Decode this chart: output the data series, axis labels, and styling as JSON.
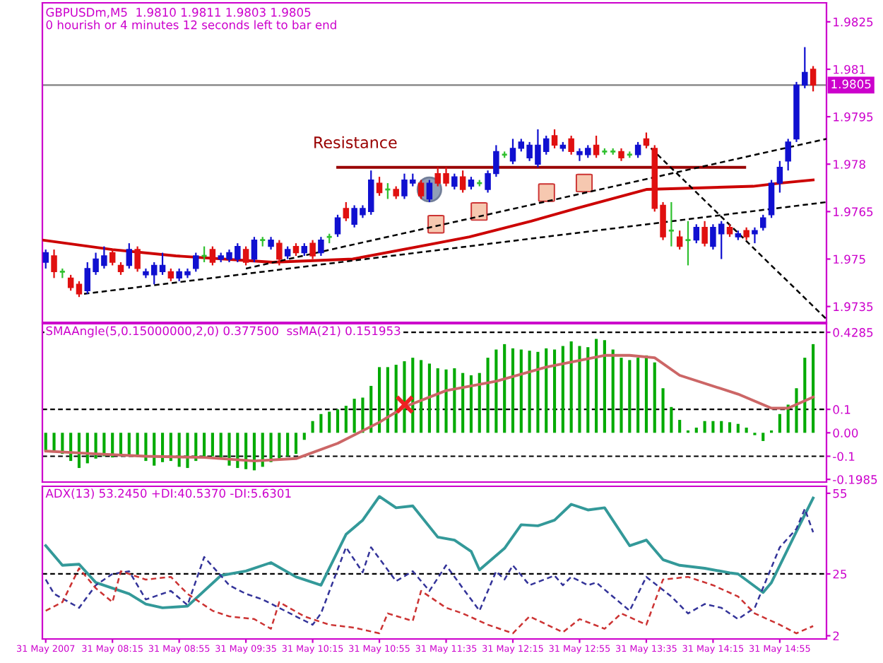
{
  "chart_data": [
    {
      "type": "candlestick",
      "title": "GBPUSDm,M5  1.9810 1.9811 1.9803 1.9805",
      "subtitle": "0 hourish or 4 minutes 12 seconds left to bar end",
      "tick_labels": "y",
      "x": [
        "2007-05-31T07:35",
        "2007-05-31T07:40",
        "2007-05-31T07:45",
        "2007-05-31T07:50",
        "2007-05-31T07:55",
        "2007-05-31T08:00",
        "2007-05-31T08:05",
        "2007-05-31T08:10",
        "2007-05-31T08:15",
        "2007-05-31T08:20",
        "2007-05-31T08:25",
        "2007-05-31T08:30",
        "2007-05-31T08:35",
        "2007-05-31T08:40",
        "2007-05-31T08:45",
        "2007-05-31T08:50",
        "2007-05-31T08:55",
        "2007-05-31T09:00",
        "2007-05-31T09:05",
        "2007-05-31T09:10",
        "2007-05-31T09:15",
        "2007-05-31T09:20",
        "2007-05-31T09:25",
        "2007-05-31T09:30",
        "2007-05-31T09:35",
        "2007-05-31T09:40",
        "2007-05-31T09:45",
        "2007-05-31T09:50",
        "2007-05-31T09:55",
        "2007-05-31T10:00",
        "2007-05-31T10:05",
        "2007-05-31T10:10",
        "2007-05-31T10:15",
        "2007-05-31T10:20",
        "2007-05-31T10:25",
        "2007-05-31T10:30",
        "2007-05-31T10:35",
        "2007-05-31T10:40",
        "2007-05-31T10:45",
        "2007-05-31T10:50",
        "2007-05-31T10:55",
        "2007-05-31T11:00",
        "2007-05-31T11:05",
        "2007-05-31T11:10",
        "2007-05-31T11:15",
        "2007-05-31T11:20",
        "2007-05-31T11:25",
        "2007-05-31T11:30",
        "2007-05-31T11:35",
        "2007-05-31T11:40",
        "2007-05-31T11:45",
        "2007-05-31T11:50",
        "2007-05-31T11:55",
        "2007-05-31T12:00",
        "2007-05-31T12:05",
        "2007-05-31T12:10",
        "2007-05-31T12:15",
        "2007-05-31T12:20",
        "2007-05-31T12:25",
        "2007-05-31T12:30",
        "2007-05-31T12:35",
        "2007-05-31T12:40",
        "2007-05-31T12:45",
        "2007-05-31T12:50",
        "2007-05-31T12:55",
        "2007-05-31T13:00",
        "2007-05-31T13:05",
        "2007-05-31T13:10",
        "2007-05-31T13:15",
        "2007-05-31T13:20",
        "2007-05-31T13:25",
        "2007-05-31T13:30",
        "2007-05-31T13:35",
        "2007-05-31T13:40",
        "2007-05-31T13:45",
        "2007-05-31T13:50",
        "2007-05-31T13:55",
        "2007-05-31T14:00",
        "2007-05-31T14:05",
        "2007-05-31T14:10",
        "2007-05-31T14:15",
        "2007-05-31T14:20",
        "2007-05-31T14:25",
        "2007-05-31T14:30",
        "2007-05-31T14:35",
        "2007-05-31T14:40",
        "2007-05-31T14:45",
        "2007-05-31T14:50",
        "2007-05-31T14:55",
        "2007-05-31T15:00",
        "2007-05-31T15:05",
        "2007-05-31T15:10",
        "2007-05-31T15:15"
      ],
      "ohlc": [
        [
          1.9749,
          1.9753,
          1.9747,
          1.9752
        ],
        [
          1.9751,
          1.9753,
          1.9744,
          1.9746
        ],
        [
          1.9746,
          1.9747,
          1.9744,
          1.9746
        ],
        [
          1.9744,
          1.9745,
          1.974,
          1.9741
        ],
        [
          1.9742,
          1.9743,
          1.9738,
          1.9739
        ],
        [
          1.974,
          1.9749,
          1.9739,
          1.9747
        ],
        [
          1.9746,
          1.9752,
          1.9745,
          1.975
        ],
        [
          1.9748,
          1.9754,
          1.9747,
          1.9751
        ],
        [
          1.9752,
          1.9753,
          1.9748,
          1.9749
        ],
        [
          1.9748,
          1.9749,
          1.9745,
          1.9746
        ],
        [
          1.9748,
          1.9755,
          1.9747,
          1.9753
        ],
        [
          1.9753,
          1.9754,
          1.9746,
          1.9747
        ],
        [
          1.9745,
          1.9747,
          1.9744,
          1.9746
        ],
        [
          1.9745,
          1.9749,
          1.9742,
          1.9748
        ],
        [
          1.9746,
          1.9752,
          1.9745,
          1.9748
        ],
        [
          1.9746,
          1.9747,
          1.9743,
          1.9744
        ],
        [
          1.9744,
          1.9747,
          1.9743,
          1.9746
        ],
        [
          1.9745,
          1.9747,
          1.9744,
          1.9746
        ],
        [
          1.9747,
          1.9752,
          1.9746,
          1.9751
        ],
        [
          1.9751,
          1.9754,
          1.9749,
          1.9751
        ],
        [
          1.9753,
          1.9754,
          1.9748,
          1.9749
        ],
        [
          1.975,
          1.9752,
          1.9749,
          1.9751
        ],
        [
          1.975,
          1.9753,
          1.9749,
          1.9752
        ],
        [
          1.975,
          1.9755,
          1.9749,
          1.9754
        ],
        [
          1.9753,
          1.9754,
          1.9748,
          1.9749
        ],
        [
          1.975,
          1.9757,
          1.9749,
          1.9756
        ],
        [
          1.9756,
          1.9757,
          1.9754,
          1.9756
        ],
        [
          1.9754,
          1.9757,
          1.9753,
          1.9756
        ],
        [
          1.9755,
          1.9756,
          1.9748,
          1.975
        ],
        [
          1.9751,
          1.9754,
          1.975,
          1.9753
        ],
        [
          1.9754,
          1.9755,
          1.9751,
          1.9752
        ],
        [
          1.9752,
          1.9755,
          1.9751,
          1.9754
        ],
        [
          1.9755,
          1.9756,
          1.975,
          1.9751
        ],
        [
          1.9752,
          1.9757,
          1.9751,
          1.9756
        ],
        [
          1.9757,
          1.9758,
          1.9755,
          1.9757
        ],
        [
          1.9758,
          1.9764,
          1.9757,
          1.9763
        ],
        [
          1.9766,
          1.9768,
          1.9762,
          1.9763
        ],
        [
          1.9761,
          1.9767,
          1.976,
          1.9766
        ],
        [
          1.9764,
          1.9767,
          1.9763,
          1.9766
        ],
        [
          1.9765,
          1.9778,
          1.9764,
          1.9775
        ],
        [
          1.9774,
          1.9776,
          1.977,
          1.9771
        ],
        [
          1.9772,
          1.9774,
          1.9769,
          1.9772
        ],
        [
          1.9772,
          1.9773,
          1.9769,
          1.977
        ],
        [
          1.977,
          1.9777,
          1.9769,
          1.9775
        ],
        [
          1.9774,
          1.9777,
          1.9773,
          1.9775
        ],
        [
          1.9774,
          1.9775,
          1.9769,
          1.977
        ],
        [
          1.9769,
          1.9775,
          1.9768,
          1.9774
        ],
        [
          1.9777,
          1.9779,
          1.9773,
          1.9774
        ],
        [
          1.9777,
          1.9779,
          1.9773,
          1.9774
        ],
        [
          1.9773,
          1.9777,
          1.9772,
          1.9776
        ],
        [
          1.9776,
          1.9778,
          1.9771,
          1.9772
        ],
        [
          1.9773,
          1.9776,
          1.9772,
          1.9775
        ],
        [
          1.9774,
          1.9775,
          1.9773,
          1.9774
        ],
        [
          1.9772,
          1.9778,
          1.9771,
          1.9777
        ],
        [
          1.9777,
          1.9786,
          1.9776,
          1.9784
        ],
        [
          1.9783,
          1.9784,
          1.9782,
          1.9783
        ],
        [
          1.9781,
          1.9788,
          1.978,
          1.9785
        ],
        [
          1.9785,
          1.9788,
          1.9784,
          1.9787
        ],
        [
          1.9782,
          1.9787,
          1.9781,
          1.9786
        ],
        [
          1.978,
          1.9791,
          1.9779,
          1.9786
        ],
        [
          1.9784,
          1.9789,
          1.9783,
          1.9788
        ],
        [
          1.9789,
          1.9791,
          1.9785,
          1.9786
        ],
        [
          1.9785,
          1.9787,
          1.9784,
          1.9786
        ],
        [
          1.9788,
          1.9789,
          1.9783,
          1.9784
        ],
        [
          1.9783,
          1.9785,
          1.9781,
          1.9784
        ],
        [
          1.9783,
          1.9786,
          1.9782,
          1.9785
        ],
        [
          1.9786,
          1.9789,
          1.9782,
          1.9783
        ],
        [
          1.9784,
          1.9785,
          1.9783,
          1.9784
        ],
        [
          1.9784,
          1.9785,
          1.9783,
          1.9784
        ],
        [
          1.9784,
          1.9785,
          1.9781,
          1.9782
        ],
        [
          1.9783,
          1.9784,
          1.9782,
          1.9783
        ],
        [
          1.9783,
          1.9787,
          1.9782,
          1.9786
        ],
        [
          1.9788,
          1.979,
          1.9785,
          1.9786
        ],
        [
          1.9785,
          1.9786,
          1.9765,
          1.9766
        ],
        [
          1.9767,
          1.9768,
          1.9756,
          1.9757
        ],
        [
          1.9759,
          1.9768,
          1.9754,
          1.9759
        ],
        [
          1.9757,
          1.9759,
          1.9753,
          1.9754
        ],
        [
          1.9756,
          1.9762,
          1.9748,
          1.9756
        ],
        [
          1.9756,
          1.9761,
          1.9755,
          1.976
        ],
        [
          1.976,
          1.9762,
          1.9754,
          1.9755
        ],
        [
          1.9754,
          1.9761,
          1.9753,
          1.976
        ],
        [
          1.9758,
          1.9762,
          1.975,
          1.9761
        ],
        [
          1.976,
          1.9761,
          1.9757,
          1.9758
        ],
        [
          1.9757,
          1.9759,
          1.9756,
          1.9758
        ],
        [
          1.9759,
          1.976,
          1.9756,
          1.9757
        ],
        [
          1.9758,
          1.976,
          1.9755,
          1.9759
        ],
        [
          1.976,
          1.9764,
          1.9759,
          1.9763
        ],
        [
          1.9764,
          1.9775,
          1.9763,
          1.9774
        ],
        [
          1.9774,
          1.9781,
          1.9771,
          1.9779
        ],
        [
          1.9781,
          1.9788,
          1.9778,
          1.9787
        ],
        [
          1.9788,
          1.9806,
          1.9787,
          1.9805
        ],
        [
          1.9805,
          1.9817,
          1.9804,
          1.9809
        ],
        [
          1.981,
          1.9811,
          1.9803,
          1.9805
        ]
      ],
      "colors": [
        "#1010d0",
        "#e01010",
        "#30c030",
        "#e01010",
        "#e01010",
        "#1010d0",
        "#1010d0",
        "#1010d0",
        "#e01010",
        "#e01010",
        "#1010d0",
        "#e01010",
        "#1010d0",
        "#1010d0",
        "#1010d0",
        "#e01010",
        "#1010d0",
        "#1010d0",
        "#1010d0",
        "#30c030",
        "#e01010",
        "#1010d0",
        "#1010d0",
        "#1010d0",
        "#e01010",
        "#1010d0",
        "#30c030",
        "#1010d0",
        "#e01010",
        "#1010d0",
        "#e01010",
        "#1010d0",
        "#e01010",
        "#1010d0",
        "#30c030",
        "#1010d0",
        "#e01010",
        "#1010d0",
        "#1010d0",
        "#1010d0",
        "#e01010",
        "#30c030",
        "#e01010",
        "#1010d0",
        "#1010d0",
        "#e01010",
        "#1010d0",
        "#e01010",
        "#e01010",
        "#1010d0",
        "#e01010",
        "#1010d0",
        "#30c030",
        "#1010d0",
        "#1010d0",
        "#30c030",
        "#1010d0",
        "#1010d0",
        "#1010d0",
        "#1010d0",
        "#1010d0",
        "#e01010",
        "#1010d0",
        "#e01010",
        "#1010d0",
        "#1010d0",
        "#e01010",
        "#30c030",
        "#30c030",
        "#e01010",
        "#30c030",
        "#1010d0",
        "#e01010",
        "#e01010",
        "#e01010",
        "#30c030",
        "#e01010",
        "#30c030",
        "#1010d0",
        "#e01010",
        "#1010d0",
        "#1010d0",
        "#e01010",
        "#1010d0",
        "#e01010",
        "#1010d0",
        "#1010d0",
        "#1010d0",
        "#1010d0",
        "#1010d0",
        "#1010d0",
        "#1010d0",
        "#e01010"
      ],
      "series": [
        {
          "type": "line",
          "color": "#cc0000",
          "x": [
            "2007-05-31T07:33",
            "2007-05-31T08:15",
            "2007-05-31T08:53",
            "2007-05-31T09:51",
            "2007-05-31T10:39",
            "2007-05-31T11:19",
            "2007-05-31T11:49",
            "2007-05-31T12:26",
            "2007-05-31T12:53",
            "2007-05-31T13:35",
            "2007-05-31T14:39",
            "2007-05-31T14:55",
            "2007-05-31T15:15"
          ],
          "values": [
            1.9756,
            1.9753,
            1.9751,
            1.9749,
            1.975,
            1.9754,
            1.9757,
            1.9762,
            1.9766,
            1.9772,
            1.9773,
            1.9774,
            1.9775
          ]
        },
        {
          "type": "line",
          "color": "#990000",
          "x": [
            "2007-05-31T10:30",
            "2007-05-31T14:34"
          ],
          "values": [
            1.9779,
            1.9779
          ]
        },
        {
          "type": "line",
          "color": "#000000",
          "line_style": "dashed",
          "x": [
            "2007-05-31T07:58",
            "2007-05-31T15:23"
          ],
          "values": [
            1.9739,
            1.9768
          ]
        },
        {
          "type": "line",
          "color": "#000000",
          "line_style": "dashed",
          "x": [
            "2007-05-31T09:35",
            "2007-05-31T15:23"
          ],
          "values": [
            1.9747,
            1.9788
          ]
        },
        {
          "type": "line",
          "color": "#000000",
          "line_style": "dashed",
          "x": [
            "2007-05-31T13:34",
            "2007-05-31T15:23"
          ],
          "values": [
            1.9787,
            1.9731
          ]
        }
      ],
      "annotations": [
        "Resistance"
      ],
      "ref_lines": [
        {
          "axis": "y",
          "value": 1.9805,
          "label": "1.9805",
          "color": "#808080"
        }
      ],
      "xlim": [
        "2007-05-31T07:33",
        "2007-05-31T15:23"
      ],
      "ylim": [
        1.973,
        1.9831
      ],
      "yticks": [
        1.9825,
        1.981,
        1.9795,
        1.978,
        1.9765,
        1.975,
        1.9735
      ]
    },
    {
      "type": "bar",
      "title": "SMAAngle(5,0.15000000,2,0) 0.377500  ssMA(21) 0.151953",
      "tick_labels": "y",
      "color": "#00aa00",
      "x": [
        "2007-05-31T07:35",
        "2007-05-31T07:40",
        "2007-05-31T07:45",
        "2007-05-31T07:50",
        "2007-05-31T07:55",
        "2007-05-31T08:00",
        "2007-05-31T08:05",
        "2007-05-31T08:10",
        "2007-05-31T08:15",
        "2007-05-31T08:20",
        "2007-05-31T08:25",
        "2007-05-31T08:30",
        "2007-05-31T08:35",
        "2007-05-31T08:40",
        "2007-05-31T08:45",
        "2007-05-31T08:50",
        "2007-05-31T08:55",
        "2007-05-31T09:00",
        "2007-05-31T09:05",
        "2007-05-31T09:10",
        "2007-05-31T09:15",
        "2007-05-31T09:20",
        "2007-05-31T09:25",
        "2007-05-31T09:30",
        "2007-05-31T09:35",
        "2007-05-31T09:40",
        "2007-05-31T09:45",
        "2007-05-31T09:50",
        "2007-05-31T09:55",
        "2007-05-31T10:00",
        "2007-05-31T10:05",
        "2007-05-31T10:10",
        "2007-05-31T10:15",
        "2007-05-31T10:20",
        "2007-05-31T10:25",
        "2007-05-31T10:30",
        "2007-05-31T10:35",
        "2007-05-31T10:40",
        "2007-05-31T10:45",
        "2007-05-31T10:50",
        "2007-05-31T10:55",
        "2007-05-31T11:00",
        "2007-05-31T11:05",
        "2007-05-31T11:10",
        "2007-05-31T11:15",
        "2007-05-31T11:20",
        "2007-05-31T11:25",
        "2007-05-31T11:30",
        "2007-05-31T11:35",
        "2007-05-31T11:40",
        "2007-05-31T11:45",
        "2007-05-31T11:50",
        "2007-05-31T11:55",
        "2007-05-31T12:00",
        "2007-05-31T12:05",
        "2007-05-31T12:10",
        "2007-05-31T12:15",
        "2007-05-31T12:20",
        "2007-05-31T12:25",
        "2007-05-31T12:30",
        "2007-05-31T12:35",
        "2007-05-31T12:40",
        "2007-05-31T12:45",
        "2007-05-31T12:50",
        "2007-05-31T12:55",
        "2007-05-31T13:00",
        "2007-05-31T13:05",
        "2007-05-31T13:10",
        "2007-05-31T13:15",
        "2007-05-31T13:20",
        "2007-05-31T13:25",
        "2007-05-31T13:30",
        "2007-05-31T13:35",
        "2007-05-31T13:40",
        "2007-05-31T13:45",
        "2007-05-31T13:50",
        "2007-05-31T13:55",
        "2007-05-31T14:00",
        "2007-05-31T14:05",
        "2007-05-31T14:10",
        "2007-05-31T14:15",
        "2007-05-31T14:20",
        "2007-05-31T14:25",
        "2007-05-31T14:30",
        "2007-05-31T14:35",
        "2007-05-31T14:40",
        "2007-05-31T14:45",
        "2007-05-31T14:50",
        "2007-05-31T14:55",
        "2007-05-31T15:00",
        "2007-05-31T15:05",
        "2007-05-31T15:10",
        "2007-05-31T15:15"
      ],
      "values": [
        -0.078,
        -0.078,
        -0.09,
        -0.12,
        -0.15,
        -0.13,
        -0.11,
        -0.1,
        -0.105,
        -0.1,
        -0.095,
        -0.1,
        -0.12,
        -0.14,
        -0.125,
        -0.12,
        -0.145,
        -0.15,
        -0.12,
        -0.11,
        -0.1,
        -0.11,
        -0.14,
        -0.15,
        -0.155,
        -0.16,
        -0.145,
        -0.125,
        -0.11,
        -0.1,
        -0.09,
        -0.03,
        0.05,
        0.08,
        0.09,
        0.1,
        0.115,
        0.145,
        0.15,
        0.2,
        0.28,
        0.28,
        0.29,
        0.305,
        0.32,
        0.31,
        0.295,
        0.275,
        0.27,
        0.275,
        0.255,
        0.245,
        0.255,
        0.32,
        0.355,
        0.378,
        0.36,
        0.355,
        0.35,
        0.345,
        0.36,
        0.355,
        0.37,
        0.39,
        0.37,
        0.365,
        0.4,
        0.395,
        0.355,
        0.32,
        0.31,
        0.32,
        0.33,
        0.3,
        0.19,
        0.11,
        0.055,
        0.01,
        0.022,
        0.05,
        0.05,
        0.05,
        0.045,
        0.038,
        0.022,
        -0.01,
        -0.035,
        0.01,
        0.08,
        0.12,
        0.19,
        0.32,
        0.378
      ],
      "series": [
        {
          "type": "line",
          "color": "#cc6666",
          "x": [
            "2007-05-31T07:35",
            "2007-05-31T08:05",
            "2007-05-31T08:35",
            "2007-05-31T09:10",
            "2007-05-31T09:40",
            "2007-05-31T10:05",
            "2007-05-31T10:30",
            "2007-05-31T10:55",
            "2007-05-31T11:10",
            "2007-05-31T11:35",
            "2007-05-31T12:05",
            "2007-05-31T12:35",
            "2007-05-31T13:10",
            "2007-05-31T13:25",
            "2007-05-31T13:40",
            "2007-05-31T13:55",
            "2007-05-31T14:30",
            "2007-05-31T14:50",
            "2007-05-31T15:00",
            "2007-05-31T15:15"
          ],
          "values": [
            -0.078,
            -0.09,
            -0.1,
            -0.105,
            -0.12,
            -0.11,
            -0.045,
            0.045,
            0.11,
            0.18,
            0.22,
            0.28,
            0.33,
            0.33,
            0.32,
            0.245,
            0.165,
            0.105,
            0.105,
            0.152
          ]
        }
      ],
      "ref_lines": [
        {
          "axis": "y",
          "value": 0.4285,
          "color": "#000000",
          "line_style": "dashed"
        },
        {
          "axis": "y",
          "value": 0.1,
          "color": "#000000",
          "line_style": "dashed"
        },
        {
          "axis": "y",
          "value": -0.1,
          "color": "#000000",
          "line_style": "dashed"
        }
      ],
      "xlim": [
        "2007-05-31T07:33",
        "2007-05-31T15:23"
      ],
      "ylim": [
        -0.21,
        0.465
      ],
      "yticks": [
        0.4285,
        0.1,
        {
          "value": 0,
          "label": "0.00"
        },
        -0.1,
        -0.1985
      ]
    },
    {
      "type": "line",
      "title": "ADX(13) 53.2450 +DI:40.5370 -DI:5.6301",
      "series": [
        {
          "color": "#339999",
          "x": [
            "2007-05-31T07:35",
            "2007-05-31T07:45",
            "2007-05-31T07:55",
            "2007-05-31T08:05",
            "2007-05-31T08:15",
            "2007-05-31T08:25",
            "2007-05-31T08:35",
            "2007-05-31T08:45",
            "2007-05-31T09:00",
            "2007-05-31T09:20",
            "2007-05-31T09:35",
            "2007-05-31T09:50",
            "2007-05-31T10:05",
            "2007-05-31T10:20",
            "2007-05-31T10:35",
            "2007-05-31T10:45",
            "2007-05-31T10:55",
            "2007-05-31T11:05",
            "2007-05-31T11:15",
            "2007-05-31T11:30",
            "2007-05-31T11:40",
            "2007-05-31T11:50",
            "2007-05-31T11:55",
            "2007-05-31T12:10",
            "2007-05-31T12:20",
            "2007-05-31T12:30",
            "2007-05-31T12:40",
            "2007-05-31T12:50",
            "2007-05-31T13:00",
            "2007-05-31T13:10",
            "2007-05-31T13:25",
            "2007-05-31T13:35",
            "2007-05-31T13:45",
            "2007-05-31T13:55",
            "2007-05-31T14:10",
            "2007-05-31T14:25",
            "2007-05-31T14:30",
            "2007-05-31T14:45",
            "2007-05-31T14:50",
            "2007-05-31T15:05",
            "2007-05-31T15:15"
          ],
          "values": [
            35.5,
            28.2,
            28.6,
            21.8,
            19.7,
            17.6,
            13.8,
            12.4,
            13,
            24.4,
            26.1,
            29.2,
            23.9,
            20.8,
            39.7,
            45,
            53.8,
            49.6,
            50.3,
            38.7,
            37.6,
            33.4,
            26.5,
            34.5,
            43.3,
            42.9,
            45,
            50.9,
            48.8,
            49.6,
            35.5,
            37.6,
            30.3,
            28.2,
            27.1,
            25.4,
            25,
            18.1,
            21.8,
            40.8,
            53.2
          ]
        },
        {
          "color": "#333399",
          "line_style": "dashed",
          "x": [
            "2007-05-31T07:35",
            "2007-05-31T07:40",
            "2007-05-31T07:55",
            "2007-05-31T08:05",
            "2007-05-31T08:15",
            "2007-05-31T08:25",
            "2007-05-31T08:35",
            "2007-05-31T08:50",
            "2007-05-31T09:00",
            "2007-05-31T09:10",
            "2007-05-31T09:25",
            "2007-05-31T09:35",
            "2007-05-31T09:45",
            "2007-05-31T10:05",
            "2007-05-31T10:15",
            "2007-05-31T10:20",
            "2007-05-31T10:35",
            "2007-05-31T10:45",
            "2007-05-31T10:50",
            "2007-05-31T11:05",
            "2007-05-31T11:15",
            "2007-05-31T11:25",
            "2007-05-31T11:35",
            "2007-05-31T11:45",
            "2007-05-31T11:55",
            "2007-05-31T12:05",
            "2007-05-31T12:10",
            "2007-05-31T12:15",
            "2007-05-31T12:25",
            "2007-05-31T12:40",
            "2007-05-31T12:45",
            "2007-05-31T12:50",
            "2007-05-31T13:00",
            "2007-05-31T13:05",
            "2007-05-31T13:25",
            "2007-05-31T13:35",
            "2007-05-31T13:50",
            "2007-05-31T14:00",
            "2007-05-31T14:10",
            "2007-05-31T14:20",
            "2007-05-31T14:30",
            "2007-05-31T14:40",
            "2007-05-31T14:55",
            "2007-05-31T15:05",
            "2007-05-31T15:10",
            "2007-05-31T15:15"
          ],
          "values": [
            22.9,
            17.6,
            12.4,
            20.8,
            25,
            26,
            15.5,
            18.7,
            13.4,
            31.3,
            20.8,
            17.6,
            15.5,
            9.2,
            6.1,
            10.3,
            34.9,
            25.6,
            34.9,
            22.3,
            26,
            18.7,
            28.2,
            19.7,
            11.3,
            26,
            22.9,
            28.2,
            20.8,
            24.4,
            20.8,
            23.9,
            20.8,
            21.8,
            11.3,
            23.9,
            16.6,
            10.3,
            13.8,
            12.4,
            8.2,
            12.4,
            34.9,
            41.8,
            49.2,
            40.5
          ]
        },
        {
          "color": "#cc3333",
          "line_style": "dashed",
          "x": [
            "2007-05-31T07:35",
            "2007-05-31T07:45",
            "2007-05-31T07:55",
            "2007-05-31T08:05",
            "2007-05-31T08:15",
            "2007-05-31T08:20",
            "2007-05-31T08:35",
            "2007-05-31T08:50",
            "2007-05-31T09:00",
            "2007-05-31T09:15",
            "2007-05-31T09:25",
            "2007-05-31T09:40",
            "2007-05-31T09:50",
            "2007-05-31T09:55",
            "2007-05-31T10:10",
            "2007-05-31T10:25",
            "2007-05-31T10:40",
            "2007-05-31T10:55",
            "2007-05-31T11:00",
            "2007-05-31T11:15",
            "2007-05-31T11:20",
            "2007-05-31T11:35",
            "2007-05-31T11:45",
            "2007-05-31T12:00",
            "2007-05-31T12:15",
            "2007-05-31T12:25",
            "2007-05-31T12:45",
            "2007-05-31T12:55",
            "2007-05-31T13:10",
            "2007-05-31T13:20",
            "2007-05-31T13:35",
            "2007-05-31T13:45",
            "2007-05-31T14:00",
            "2007-05-31T14:15",
            "2007-05-31T14:30",
            "2007-05-31T14:40",
            "2007-05-31T14:55",
            "2007-05-31T15:05",
            "2007-05-31T15:15"
          ],
          "values": [
            11.3,
            14.5,
            27.1,
            19.7,
            14.5,
            26,
            22.9,
            23.9,
            17.6,
            11.3,
            9.2,
            8.2,
            4.6,
            14.5,
            9.2,
            6.1,
            5,
            2.9,
            10.3,
            7.5,
            18.7,
            12.4,
            10.3,
            6.1,
            2.9,
            9.2,
            3.3,
            8.2,
            4.6,
            10.3,
            6.1,
            22.9,
            23.9,
            20.8,
            16.6,
            10.3,
            6.1,
            2.9,
            5.6
          ]
        }
      ],
      "ref_lines": [
        {
          "axis": "y",
          "value": 25,
          "color": "#000000",
          "line_style": "dashed"
        }
      ],
      "xlim": [
        "2007-05-31T07:33",
        "2007-05-31T15:23"
      ],
      "ylim": [
        0.8,
        57.6
      ],
      "xticks": [
        {
          "value": "2007-05-31T07:35",
          "label": "31 May 2007"
        },
        {
          "value": "2007-05-31T08:15",
          "label": "31 May 08:15"
        },
        {
          "value": "2007-05-31T08:55",
          "label": "31 May 08:55"
        },
        {
          "value": "2007-05-31T09:35",
          "label": "31 May 09:35"
        },
        {
          "value": "2007-05-31T10:15",
          "label": "31 May 10:15"
        },
        {
          "value": "2007-05-31T10:55",
          "label": "31 May 10:55"
        },
        {
          "value": "2007-05-31T11:35",
          "label": "31 May 11:35"
        },
        {
          "value": "2007-05-31T12:15",
          "label": "31 May 12:15"
        },
        {
          "value": "2007-05-31T12:55",
          "label": "31 May 12:55"
        },
        {
          "value": "2007-05-31T13:35",
          "label": "31 May 13:35"
        },
        {
          "value": "2007-05-31T14:15",
          "label": "31 May 14:15"
        },
        {
          "value": "2007-05-31T14:55",
          "label": "31 May 14:55"
        }
      ],
      "yticks": [
        55,
        25,
        2
      ]
    }
  ]
}
